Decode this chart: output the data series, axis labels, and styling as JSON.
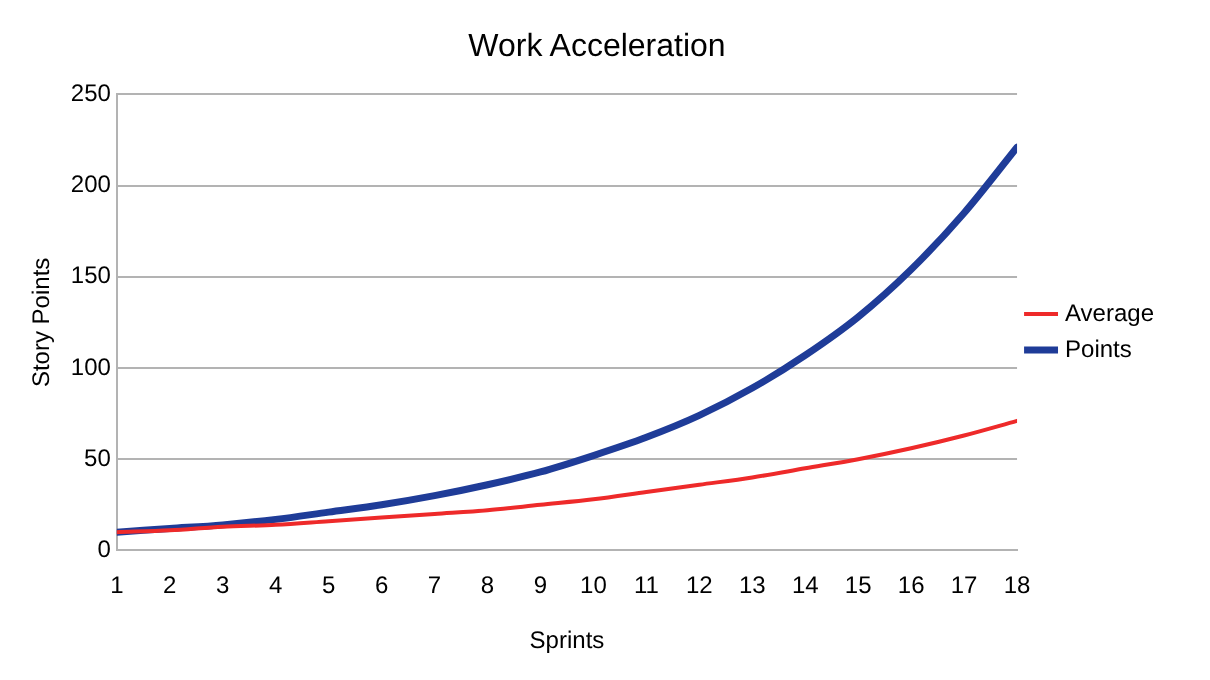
{
  "chart_data": {
    "type": "line",
    "title": "Work Acceleration",
    "xlabel": "Sprints",
    "ylabel": "Story Points",
    "x": [
      1,
      2,
      3,
      4,
      5,
      6,
      7,
      8,
      9,
      10,
      11,
      12,
      13,
      14,
      15,
      16,
      17,
      18
    ],
    "series": [
      {
        "name": "Average",
        "color": "#ee2a2a",
        "values": [
          10,
          11,
          13,
          14,
          16,
          18,
          20,
          22,
          25,
          28,
          32,
          36,
          40,
          45,
          50,
          56,
          63,
          71
        ]
      },
      {
        "name": "Points",
        "color": "#1f3c98",
        "values": [
          10,
          12,
          14,
          17,
          21,
          25,
          30,
          36,
          43,
          52,
          62,
          74,
          89,
          107,
          128,
          154,
          185,
          221
        ]
      }
    ],
    "xlim": [
      1,
      18
    ],
    "xticks": [
      1,
      2,
      3,
      4,
      5,
      6,
      7,
      8,
      9,
      10,
      11,
      12,
      13,
      14,
      15,
      16,
      17,
      18
    ],
    "ylim": [
      0,
      250
    ],
    "yticks": [
      0,
      50,
      100,
      150,
      200,
      250
    ],
    "grid": "y",
    "legend": "right",
    "marker": "none",
    "line_style": "solid"
  }
}
